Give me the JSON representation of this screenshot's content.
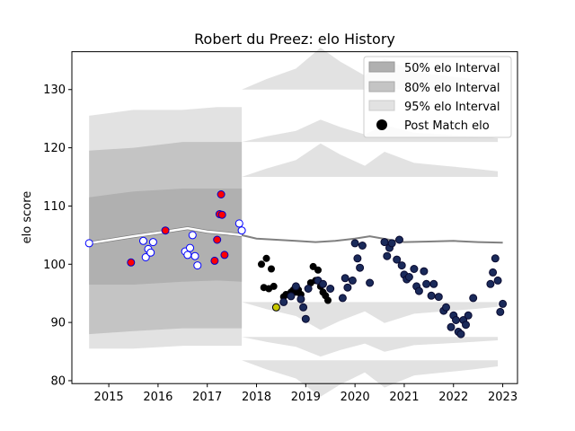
{
  "chart_data": {
    "type": "scatter",
    "title": "Robert du Preez: elo History",
    "xlabel": "",
    "ylabel": "elo score",
    "xlim": [
      2014.25,
      2023.3
    ],
    "ylim": [
      79.5,
      136.5
    ],
    "xticks": [
      "2015",
      "2016",
      "2017",
      "2018",
      "2019",
      "2020",
      "2021",
      "2022",
      "2023"
    ],
    "yticks": [
      "80",
      "90",
      "100",
      "110",
      "120",
      "130"
    ],
    "legend": {
      "placement": "top-right",
      "entries": [
        "50% elo Interval",
        "80% elo Interval",
        "95% elo Interval",
        "Post Match elo"
      ]
    },
    "colors": {
      "band50": "#b0b0b0",
      "band80": "#c4c4c4",
      "band95": "#e2e2e2",
      "trend_line": "#808080",
      "early_line": "#ffffff",
      "early_marker_face": "#ffffff",
      "early_marker_edge": "#0000ff",
      "red_marker_face": "#ff0000",
      "red_marker_edge": "#0000cc",
      "black_marker": "#000000",
      "navy_marker_face": "#1a2a5a",
      "navy_marker_edge": "#0a0a30",
      "yellow_marker": "#c8c800"
    },
    "bands_early": {
      "x": [
        2014.6,
        2015.5,
        2016.5,
        2017.2,
        2017.7
      ],
      "p50_low": [
        96.5,
        96.5,
        97.0,
        97.2,
        97.0
      ],
      "p50_high": [
        111.5,
        112.5,
        113.0,
        113.0,
        113.0
      ],
      "p80_low": [
        88.0,
        88.5,
        89.0,
        89.0,
        89.0
      ],
      "p80_high": [
        119.5,
        120.0,
        121.0,
        121.0,
        121.0
      ],
      "p95_low": [
        85.5,
        85.5,
        86.0,
        86.0,
        86.0
      ],
      "p95_high": [
        125.5,
        126.5,
        126.5,
        127.0,
        127.0
      ]
    },
    "bands_late_offsets": {
      "x": [
        2017.7,
        2018.2,
        2018.8,
        2019.3,
        2019.7,
        2020.2,
        2020.6,
        2021.2,
        2021.8,
        2022.4,
        2022.9
      ],
      "spike": [
        0,
        0.6,
        1.2,
        2.4,
        1.6,
        0.8,
        1.8,
        1.0,
        0.8,
        0.6,
        0.4
      ],
      "center": [
        105,
        104.6,
        104.2,
        104.4,
        104.0,
        104.2,
        104.4,
        104.0,
        103.9,
        103.8,
        103.8
      ]
    },
    "series": [
      {
        "name": "early_trend",
        "x": [
          2014.6,
          2015.5,
          2016.0,
          2016.6,
          2017.0,
          2017.5,
          2017.7
        ],
        "values": [
          103.6,
          104.8,
          105.4,
          106.2,
          105.6,
          105.2,
          105.0
        ]
      },
      {
        "name": "late_trend",
        "x": [
          2017.7,
          2018.0,
          2018.4,
          2018.8,
          2019.2,
          2019.6,
          2020.0,
          2020.3,
          2020.7,
          2021.0,
          2021.5,
          2022.0,
          2022.5,
          2023.0
        ],
        "values": [
          105.0,
          104.4,
          104.2,
          104.0,
          103.8,
          104.0,
          104.4,
          104.8,
          104.2,
          103.8,
          103.9,
          104.0,
          103.8,
          103.7
        ]
      }
    ],
    "points_early_blue": {
      "x": [
        2014.6,
        2015.7,
        2015.75,
        2015.8,
        2015.85,
        2015.9,
        2016.55,
        2016.6,
        2016.65,
        2016.7,
        2016.75,
        2016.8,
        2017.65,
        2017.7
      ],
      "y": [
        103.6,
        104.0,
        101.2,
        102.6,
        102.0,
        103.8,
        102.2,
        101.6,
        102.8,
        105.0,
        101.4,
        99.8,
        107.0,
        105.8
      ]
    },
    "points_early_red": {
      "x": [
        2015.45,
        2016.15,
        2017.15,
        2017.2,
        2017.25,
        2017.28,
        2017.3,
        2017.35
      ],
      "y": [
        100.3,
        105.8,
        100.6,
        104.2,
        108.6,
        112.0,
        108.5,
        101.6
      ]
    },
    "points_black": {
      "x": [
        2018.1,
        2018.15,
        2018.2,
        2018.25,
        2018.3,
        2018.35,
        2018.4,
        2018.55,
        2018.6,
        2018.7,
        2018.75,
        2018.8,
        2018.85,
        2018.9,
        2019.1,
        2019.15,
        2019.2,
        2019.25,
        2019.3,
        2019.35,
        2019.4,
        2019.45
      ],
      "y": [
        100.0,
        96.0,
        101.0,
        95.8,
        99.2,
        96.2,
        92.6,
        94.4,
        94.8,
        95.2,
        95.6,
        95.2,
        95.6,
        94.8,
        96.8,
        99.6,
        97.2,
        99.0,
        96.2,
        95.2,
        94.6,
        93.8
      ]
    },
    "points_yellow": {
      "x": [
        2018.4
      ],
      "y": [
        92.6
      ]
    },
    "points_navy": {
      "x": [
        2018.55,
        2018.7,
        2018.8,
        2018.9,
        2018.95,
        2019.0,
        2019.05,
        2019.25,
        2019.35,
        2019.5,
        2019.75,
        2019.8,
        2019.85,
        2019.95,
        2020.0,
        2020.05,
        2020.1,
        2020.15,
        2020.3,
        2020.6,
        2020.65,
        2020.7,
        2020.75,
        2020.85,
        2020.9,
        2020.95,
        2021.0,
        2021.05,
        2021.1,
        2021.2,
        2021.25,
        2021.3,
        2021.4,
        2021.45,
        2021.55,
        2021.6,
        2021.7,
        2021.8,
        2021.85,
        2021.95,
        2022.0,
        2022.05,
        2022.1,
        2022.15,
        2022.2,
        2022.25,
        2022.3,
        2022.4,
        2022.75,
        2022.8,
        2022.85,
        2022.9,
        2022.95,
        2023.0
      ],
      "y": [
        93.5,
        94.5,
        96.2,
        94.0,
        92.6,
        90.6,
        95.8,
        97.2,
        96.6,
        95.8,
        94.2,
        97.6,
        96.0,
        97.2,
        103.6,
        101.0,
        99.4,
        103.2,
        96.8,
        103.8,
        101.4,
        102.8,
        103.6,
        100.8,
        104.2,
        99.8,
        98.2,
        97.4,
        97.8,
        99.2,
        96.2,
        95.4,
        98.8,
        96.6,
        94.6,
        96.6,
        94.4,
        92.0,
        92.6,
        89.2,
        91.2,
        90.4,
        88.4,
        88.0,
        90.4,
        89.6,
        91.2,
        94.2,
        96.6,
        98.6,
        101.0,
        97.2,
        91.8,
        93.2
      ]
    }
  }
}
